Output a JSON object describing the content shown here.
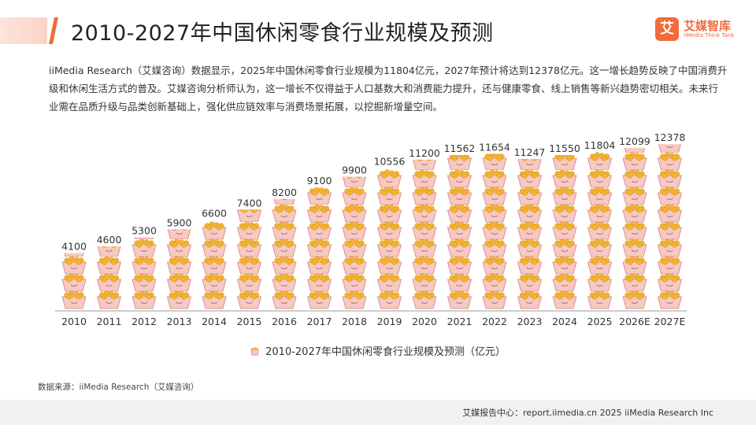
{
  "header": {
    "title": "2010-2027年中国休闲零食行业规模及预测"
  },
  "logo": {
    "mark": "艾",
    "name_cn": "艾媒智库",
    "name_en": "iiMedia Think Tank"
  },
  "intro": "iiMedia Research（艾媒咨询）数据显示，2025年中国休闲零食行业规模为11804亿元，2027年预计将达到12378亿元。这一增长趋势反映了中国消费升级和休闲生活方式的普及。艾媒咨询分析师认为，这一增长不仅得益于人口基数大和消费能力提升，还与健康零食、线上销售等新兴趋势密切相关。未来行业需在品质升级与品类创新基础上，强化供应链效率与消费场景拓展，以挖掘新增量空间。",
  "chart_data": {
    "type": "bar",
    "title": "2010-2027年中国休闲零食行业规模及预测（亿元）",
    "xlabel": "",
    "ylabel": "",
    "unit": "亿元",
    "categories": [
      "2010",
      "2011",
      "2012",
      "2013",
      "2014",
      "2015",
      "2016",
      "2017",
      "2018",
      "2019",
      "2020",
      "2021",
      "2022",
      "2023",
      "2024",
      "2025",
      "2026E",
      "2027E"
    ],
    "values": [
      4100,
      4600,
      5300,
      5900,
      6600,
      7400,
      8200,
      9100,
      9900,
      10556,
      11200,
      11562,
      11654,
      11247,
      11550,
      11804,
      12099,
      12378
    ],
    "ylim": [
      0,
      12378
    ],
    "grid": false,
    "legend": [
      "2010-2027年中国休闲零食行业规模及预测（亿元）"
    ],
    "legend_position": "bottom",
    "marker": "snack-bucket-pictogram"
  },
  "source": "数据来源：iiMedia Research（艾媒咨询）",
  "footer": "艾媒报告中心：report.iimedia.cn   2025 iiMedia Research Inc",
  "colors": {
    "accent": "#f26b3a",
    "bucket_fill": "#f6c9c3",
    "bucket_stroke": "#d97f76",
    "snack": "#f2b431",
    "axis": "#999999"
  }
}
